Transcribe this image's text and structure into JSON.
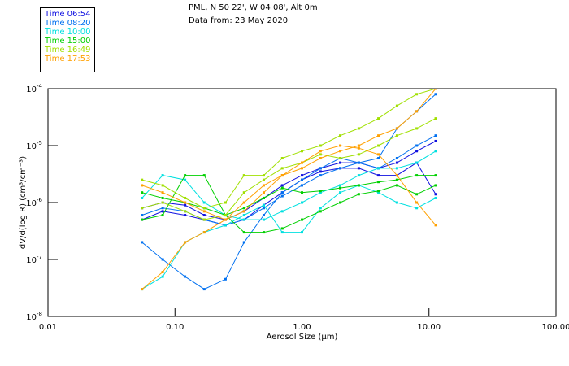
{
  "header": {
    "title_line1": "PML, N 50 22', W 04 08', Alt 0m",
    "title_line2": "Data from: 23 May 2020"
  },
  "legend": [
    {
      "label": "Time 06:54",
      "color": "#1010e0"
    },
    {
      "label": "Time 08:20",
      "color": "#0070f0"
    },
    {
      "label": "Time 10:00",
      "color": "#00e0e0"
    },
    {
      "label": "Time 15:00",
      "color": "#00d000"
    },
    {
      "label": "Time 16:49",
      "color": "#a0e000"
    },
    {
      "label": "Time 17:53",
      "color": "#ffa000"
    }
  ],
  "chart_data": {
    "type": "line",
    "xlabel": "Aerosol Size (µm)",
    "ylabel": "dV/d(log R) (cm³/cm⁻³)",
    "xscale": "log",
    "yscale": "log",
    "xlim": [
      0.01,
      100
    ],
    "ylim": [
      1e-08,
      0.0001
    ],
    "xticks": [
      {
        "v": 0.01,
        "label": "0.01"
      },
      {
        "v": 0.1,
        "label": "0.10"
      },
      {
        "v": 1,
        "label": "1.00"
      },
      {
        "v": 10,
        "label": "10.00"
      },
      {
        "v": 100,
        "label": "100.00"
      }
    ],
    "yticks": [
      {
        "v": 0.0001,
        "exp": "-4"
      },
      {
        "v": 1e-05,
        "exp": "-5"
      },
      {
        "v": 1e-06,
        "exp": "-6"
      },
      {
        "v": 1e-07,
        "exp": "-7"
      },
      {
        "v": 1e-08,
        "exp": "-8"
      }
    ],
    "ytick_base": "10",
    "x": [
      0.055,
      0.08,
      0.12,
      0.17,
      0.25,
      0.35,
      0.5,
      0.7,
      1.0,
      1.4,
      2.0,
      2.8,
      4.0,
      5.6,
      8.0,
      11.3
    ],
    "series": [
      {
        "name": "Time 06:54",
        "group": 0,
        "values": [
          8e-07,
          1e-06,
          9e-07,
          6e-07,
          5e-07,
          7e-07,
          1.2e-06,
          2e-06,
          3e-06,
          4e-06,
          5e-06,
          5e-06,
          4e-06,
          5e-06,
          8e-06,
          1.2e-05
        ]
      },
      {
        "name": "Time 06:54",
        "group": 0,
        "values": [
          5e-07,
          7e-07,
          6e-07,
          5e-07,
          4e-07,
          5e-07,
          9e-07,
          1.5e-06,
          2.5e-06,
          3.5e-06,
          4e-06,
          4e-06,
          3e-06,
          3e-06,
          5e-06,
          1.4e-06
        ]
      },
      {
        "name": "Time 08:20",
        "group": 1,
        "values": [
          2e-07,
          1e-07,
          5e-08,
          3e-08,
          4.5e-08,
          2e-07,
          6e-07,
          1.5e-06,
          2.5e-06,
          4e-06,
          6e-06,
          5e-06,
          4e-06,
          6e-06,
          1e-05,
          1.5e-05
        ]
      },
      {
        "name": "Time 08:20",
        "group": 1,
        "values": [
          6e-07,
          8e-07,
          7e-07,
          5e-07,
          4e-07,
          5e-07,
          8e-07,
          1.3e-06,
          2e-06,
          3e-06,
          4e-06,
          5e-06,
          6e-06,
          2e-05,
          4e-05,
          8e-05
        ]
      },
      {
        "name": "Time 10:00",
        "group": 2,
        "values": [
          3e-08,
          5e-08,
          2e-07,
          3e-07,
          4e-07,
          6e-07,
          9e-07,
          3e-07,
          3e-07,
          8e-07,
          1.5e-06,
          2e-06,
          1.5e-06,
          1e-06,
          8e-07,
          1.2e-06
        ]
      },
      {
        "name": "Time 10:00",
        "group": 2,
        "values": [
          1.2e-06,
          3e-06,
          2.5e-06,
          1e-06,
          6e-07,
          5e-07,
          5e-07,
          7e-07,
          1e-06,
          1.5e-06,
          2e-06,
          3e-06,
          4e-06,
          4e-06,
          5e-06,
          8e-06
        ]
      },
      {
        "name": "Time 15:00",
        "group": 3,
        "values": [
          5e-07,
          6e-07,
          3e-06,
          3e-06,
          6e-07,
          3e-07,
          3e-07,
          3.5e-07,
          5e-07,
          7e-07,
          1e-06,
          1.4e-06,
          1.6e-06,
          2e-06,
          1.4e-06,
          2e-06
        ]
      },
      {
        "name": "Time 15:00",
        "group": 3,
        "values": [
          1.5e-06,
          1.2e-06,
          1e-06,
          8e-07,
          6e-07,
          8e-07,
          1.2e-06,
          1.8e-06,
          1.5e-06,
          1.6e-06,
          1.8e-06,
          2e-06,
          2.3e-06,
          2.5e-06,
          3e-06,
          3e-06
        ]
      },
      {
        "name": "Time 16:49",
        "group": 4,
        "values": [
          2.5e-06,
          2e-06,
          1.2e-06,
          8e-07,
          1e-06,
          3e-06,
          3e-06,
          6e-06,
          8e-06,
          1e-05,
          1.5e-05,
          2e-05,
          3e-05,
          5e-05,
          8e-05,
          0.0001
        ]
      },
      {
        "name": "Time 16:49",
        "group": 4,
        "values": [
          8e-07,
          1e-06,
          7e-07,
          5e-07,
          6e-07,
          1.5e-06,
          2.5e-06,
          4e-06,
          5e-06,
          7e-06,
          6e-06,
          7e-06,
          1e-05,
          1.5e-05,
          2e-05,
          3e-05
        ]
      },
      {
        "name": "Time 17:53",
        "group": 5,
        "values": [
          3e-08,
          6e-08,
          2e-07,
          3e-07,
          5e-07,
          7e-07,
          1.5e-06,
          3e-06,
          5e-06,
          8e-06,
          1e-05,
          9e-06,
          7e-06,
          3e-06,
          1e-06,
          4e-07
        ]
      },
      {
        "name": "Time 17:53",
        "group": 5,
        "values": [
          2e-06,
          1.5e-06,
          1e-06,
          7e-07,
          5e-07,
          1e-06,
          2e-06,
          3e-06,
          4e-06,
          6e-06,
          8e-06,
          1e-05,
          1.5e-05,
          2e-05,
          4e-05,
          0.0001
        ]
      }
    ]
  }
}
